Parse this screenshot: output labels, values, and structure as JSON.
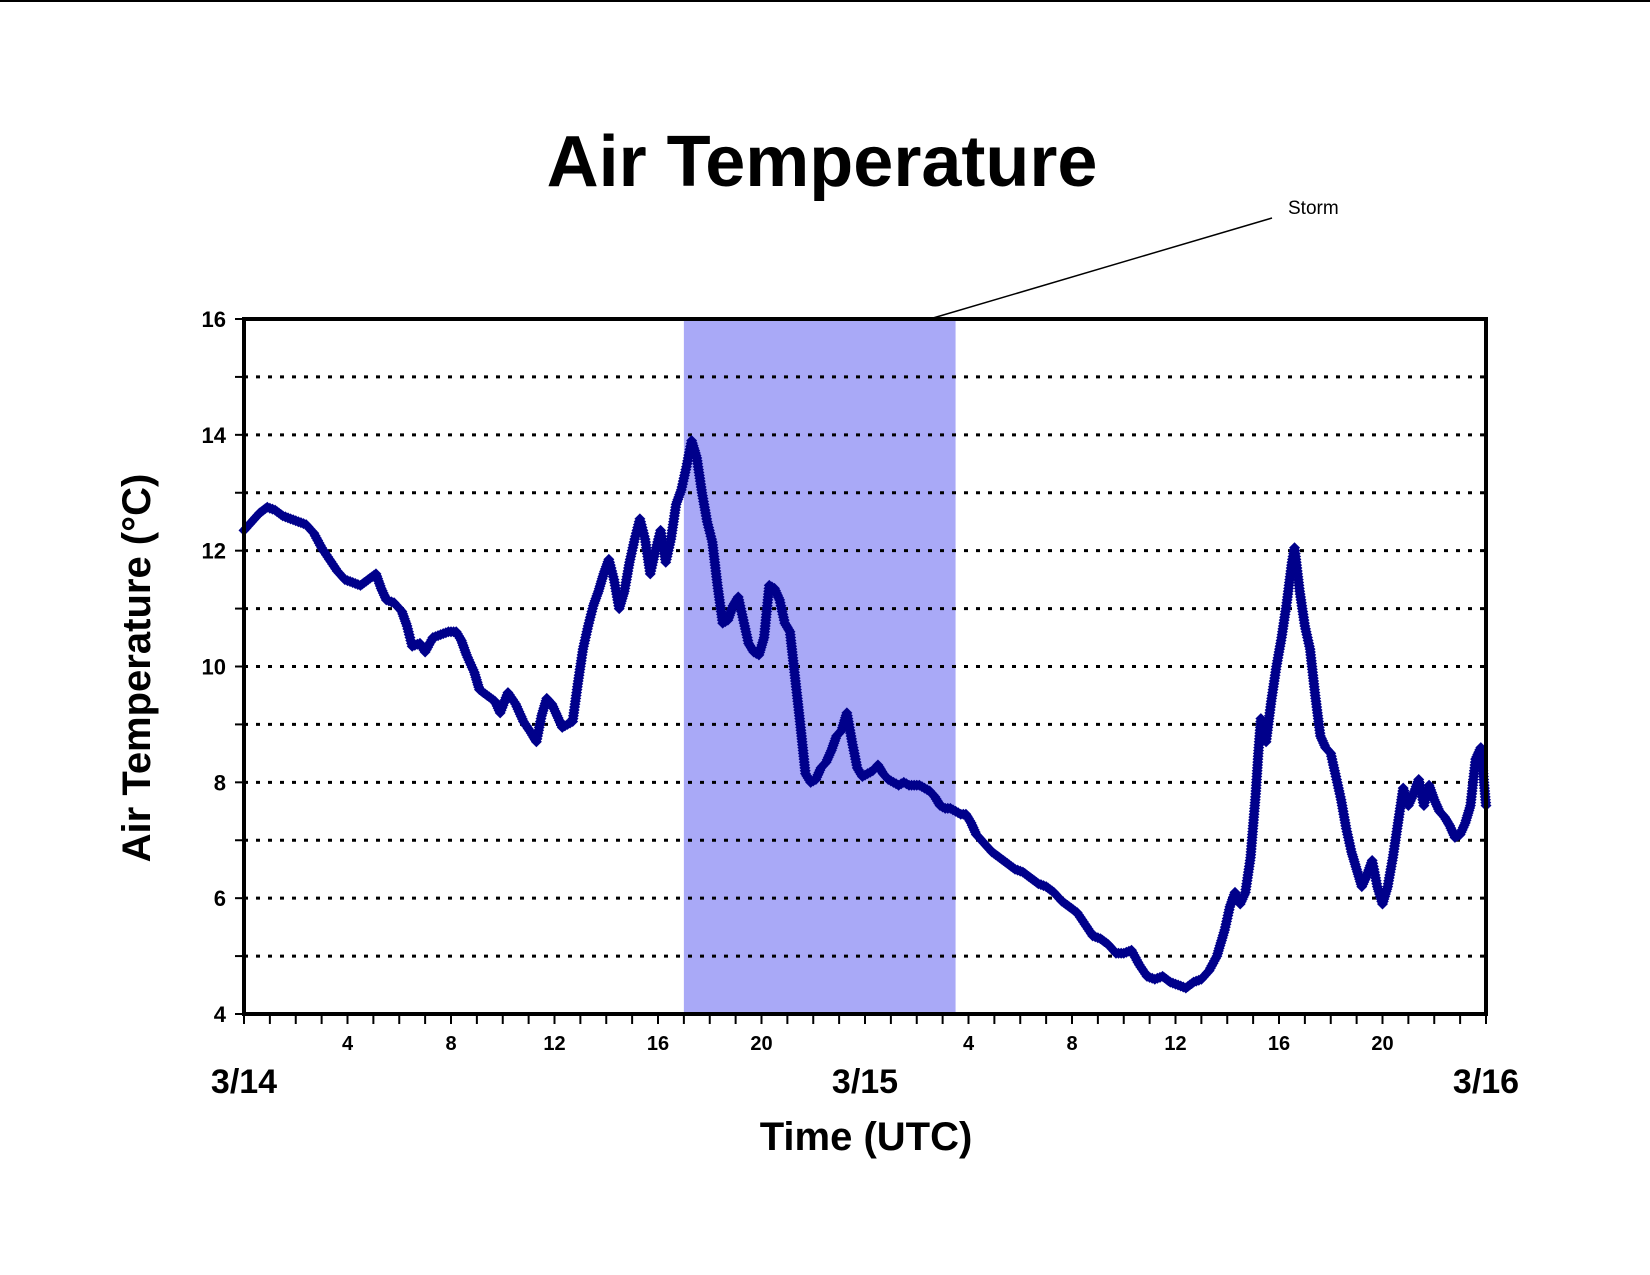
{
  "chart_data": {
    "type": "scatter",
    "title": "Air Temperature",
    "xlabel": "Time (UTC)",
    "ylabel": "Air Temperature (°C)",
    "x_unit": "hours",
    "xlim": [
      0,
      48
    ],
    "ylim": [
      4,
      16
    ],
    "y_ticks": [
      4,
      6,
      8,
      10,
      12,
      14,
      16
    ],
    "y_minor_ticks": [
      5,
      7,
      9,
      11,
      13,
      15
    ],
    "x_hour_ticks": [
      {
        "x": 4,
        "label": "4"
      },
      {
        "x": 8,
        "label": "8"
      },
      {
        "x": 12,
        "label": "12"
      },
      {
        "x": 16,
        "label": "16"
      },
      {
        "x": 20,
        "label": "20"
      },
      {
        "x": 28,
        "label": "4"
      },
      {
        "x": 32,
        "label": "8"
      },
      {
        "x": 36,
        "label": "12"
      },
      {
        "x": 40,
        "label": "16"
      },
      {
        "x": 44,
        "label": "20"
      }
    ],
    "x_date_labels": [
      {
        "x": 0,
        "label": "3/14"
      },
      {
        "x": 24,
        "label": "3/15"
      },
      {
        "x": 48,
        "label": "3/16"
      }
    ],
    "grid": "horizontal dotted",
    "shaded_region": {
      "x_start": 17,
      "x_end": 27.5,
      "color": "#a9a9f7"
    },
    "annotation": {
      "text": "Storm",
      "points_to_x": 26.5,
      "points_to_y": 16
    },
    "marker_color": "#00008b",
    "series": [
      {
        "points": [
          [
            0,
            12.35
          ],
          [
            0.3,
            12.5
          ],
          [
            0.6,
            12.65
          ],
          [
            0.9,
            12.75
          ],
          [
            1.2,
            12.7
          ],
          [
            1.5,
            12.6
          ],
          [
            1.8,
            12.55
          ],
          [
            2.1,
            12.5
          ],
          [
            2.4,
            12.45
          ],
          [
            2.7,
            12.3
          ],
          [
            3,
            12.05
          ],
          [
            3.3,
            11.85
          ],
          [
            3.6,
            11.65
          ],
          [
            3.9,
            11.5
          ],
          [
            4.2,
            11.45
          ],
          [
            4.5,
            11.4
          ],
          [
            4.8,
            11.5
          ],
          [
            5.1,
            11.6
          ],
          [
            5.3,
            11.35
          ],
          [
            5.5,
            11.15
          ],
          [
            5.8,
            11.1
          ],
          [
            6.1,
            10.95
          ],
          [
            6.3,
            10.7
          ],
          [
            6.5,
            10.35
          ],
          [
            6.8,
            10.4
          ],
          [
            7,
            10.25
          ],
          [
            7.3,
            10.5
          ],
          [
            7.6,
            10.55
          ],
          [
            7.9,
            10.6
          ],
          [
            8.2,
            10.6
          ],
          [
            8.4,
            10.45
          ],
          [
            8.6,
            10.2
          ],
          [
            8.9,
            9.9
          ],
          [
            9.1,
            9.6
          ],
          [
            9.4,
            9.5
          ],
          [
            9.7,
            9.4
          ],
          [
            9.9,
            9.2
          ],
          [
            10.2,
            9.55
          ],
          [
            10.5,
            9.35
          ],
          [
            10.8,
            9.05
          ],
          [
            11.1,
            8.85
          ],
          [
            11.3,
            8.7
          ],
          [
            11.5,
            9.15
          ],
          [
            11.7,
            9.45
          ],
          [
            11.9,
            9.35
          ],
          [
            12.1,
            9.15
          ],
          [
            12.3,
            8.95
          ],
          [
            12.5,
            9.0
          ],
          [
            12.7,
            9.05
          ],
          [
            12.9,
            9.7
          ],
          [
            13.1,
            10.3
          ],
          [
            13.3,
            10.7
          ],
          [
            13.5,
            11.05
          ],
          [
            13.7,
            11.3
          ],
          [
            13.9,
            11.6
          ],
          [
            14.1,
            11.85
          ],
          [
            14.3,
            11.5
          ],
          [
            14.5,
            11.0
          ],
          [
            14.7,
            11.3
          ],
          [
            14.9,
            11.8
          ],
          [
            15.1,
            12.2
          ],
          [
            15.3,
            12.55
          ],
          [
            15.5,
            12.2
          ],
          [
            15.7,
            11.6
          ],
          [
            15.9,
            12.0
          ],
          [
            16.1,
            12.35
          ],
          [
            16.3,
            11.8
          ],
          [
            16.5,
            12.2
          ],
          [
            16.7,
            12.8
          ],
          [
            16.9,
            13.05
          ],
          [
            17.1,
            13.45
          ],
          [
            17.3,
            13.9
          ],
          [
            17.5,
            13.6
          ],
          [
            17.7,
            13.0
          ],
          [
            17.9,
            12.5
          ],
          [
            18.1,
            12.15
          ],
          [
            18.3,
            11.4
          ],
          [
            18.5,
            10.75
          ],
          [
            18.7,
            10.8
          ],
          [
            18.9,
            11.05
          ],
          [
            19.1,
            11.2
          ],
          [
            19.3,
            10.8
          ],
          [
            19.5,
            10.4
          ],
          [
            19.7,
            10.25
          ],
          [
            19.9,
            10.2
          ],
          [
            20.1,
            10.5
          ],
          [
            20.3,
            11.4
          ],
          [
            20.5,
            11.35
          ],
          [
            20.7,
            11.15
          ],
          [
            20.9,
            10.75
          ],
          [
            21.1,
            10.6
          ],
          [
            21.3,
            9.8
          ],
          [
            21.5,
            9.0
          ],
          [
            21.7,
            8.15
          ],
          [
            21.9,
            8.0
          ],
          [
            22.1,
            8.05
          ],
          [
            22.3,
            8.25
          ],
          [
            22.5,
            8.35
          ],
          [
            22.7,
            8.55
          ],
          [
            22.9,
            8.8
          ],
          [
            23.1,
            8.9
          ],
          [
            23.3,
            9.2
          ],
          [
            23.5,
            8.7
          ],
          [
            23.7,
            8.25
          ],
          [
            23.9,
            8.1
          ],
          [
            24.1,
            8.15
          ],
          [
            24.3,
            8.2
          ],
          [
            24.5,
            8.3
          ],
          [
            24.7,
            8.15
          ],
          [
            24.9,
            8.05
          ],
          [
            25.1,
            8.0
          ],
          [
            25.3,
            7.95
          ],
          [
            25.5,
            8.0
          ],
          [
            25.7,
            7.95
          ],
          [
            25.9,
            7.95
          ],
          [
            26.1,
            7.95
          ],
          [
            26.3,
            7.9
          ],
          [
            26.5,
            7.85
          ],
          [
            26.7,
            7.75
          ],
          [
            26.9,
            7.6
          ],
          [
            27.1,
            7.55
          ],
          [
            27.3,
            7.55
          ],
          [
            27.5,
            7.5
          ],
          [
            27.7,
            7.45
          ],
          [
            27.9,
            7.45
          ],
          [
            28.1,
            7.3
          ],
          [
            28.3,
            7.1
          ],
          [
            28.6,
            6.95
          ],
          [
            28.9,
            6.8
          ],
          [
            29.2,
            6.7
          ],
          [
            29.5,
            6.6
          ],
          [
            29.8,
            6.5
          ],
          [
            30.1,
            6.45
          ],
          [
            30.4,
            6.35
          ],
          [
            30.7,
            6.25
          ],
          [
            31,
            6.2
          ],
          [
            31.3,
            6.1
          ],
          [
            31.6,
            5.95
          ],
          [
            31.9,
            5.85
          ],
          [
            32.2,
            5.75
          ],
          [
            32.5,
            5.55
          ],
          [
            32.8,
            5.35
          ],
          [
            33.1,
            5.3
          ],
          [
            33.4,
            5.2
          ],
          [
            33.7,
            5.05
          ],
          [
            34,
            5.05
          ],
          [
            34.3,
            5.1
          ],
          [
            34.6,
            4.85
          ],
          [
            34.9,
            4.65
          ],
          [
            35.2,
            4.6
          ],
          [
            35.5,
            4.65
          ],
          [
            35.8,
            4.55
          ],
          [
            36.1,
            4.5
          ],
          [
            36.4,
            4.45
          ],
          [
            36.7,
            4.55
          ],
          [
            37.0,
            4.6
          ],
          [
            37.3,
            4.75
          ],
          [
            37.6,
            5.0
          ],
          [
            37.9,
            5.45
          ],
          [
            38.1,
            5.85
          ],
          [
            38.3,
            6.1
          ],
          [
            38.5,
            5.9
          ],
          [
            38.7,
            6.1
          ],
          [
            38.9,
            6.7
          ],
          [
            39.1,
            7.8
          ],
          [
            39.2,
            8.5
          ],
          [
            39.3,
            9.1
          ],
          [
            39.5,
            8.7
          ],
          [
            39.7,
            9.4
          ],
          [
            39.9,
            10.0
          ],
          [
            40.1,
            10.5
          ],
          [
            40.3,
            11.1
          ],
          [
            40.5,
            11.8
          ],
          [
            40.6,
            12.05
          ],
          [
            40.8,
            11.3
          ],
          [
            41.0,
            10.7
          ],
          [
            41.2,
            10.3
          ],
          [
            41.4,
            9.5
          ],
          [
            41.6,
            8.8
          ],
          [
            41.8,
            8.6
          ],
          [
            42.0,
            8.5
          ],
          [
            42.2,
            8.1
          ],
          [
            42.4,
            7.7
          ],
          [
            42.6,
            7.2
          ],
          [
            42.8,
            6.8
          ],
          [
            43.0,
            6.5
          ],
          [
            43.2,
            6.2
          ],
          [
            43.4,
            6.4
          ],
          [
            43.6,
            6.65
          ],
          [
            43.8,
            6.2
          ],
          [
            44.0,
            5.9
          ],
          [
            44.2,
            6.2
          ],
          [
            44.4,
            6.7
          ],
          [
            44.6,
            7.3
          ],
          [
            44.8,
            7.9
          ],
          [
            45.0,
            7.6
          ],
          [
            45.2,
            7.8
          ],
          [
            45.4,
            8.05
          ],
          [
            45.6,
            7.6
          ],
          [
            45.8,
            7.95
          ],
          [
            46.0,
            7.7
          ],
          [
            46.2,
            7.5
          ],
          [
            46.4,
            7.4
          ],
          [
            46.6,
            7.25
          ],
          [
            46.8,
            7.05
          ],
          [
            47.0,
            7.1
          ],
          [
            47.2,
            7.3
          ],
          [
            47.4,
            7.6
          ],
          [
            47.6,
            8.4
          ],
          [
            47.8,
            8.6
          ],
          [
            48.0,
            7.6
          ]
        ]
      }
    ]
  }
}
